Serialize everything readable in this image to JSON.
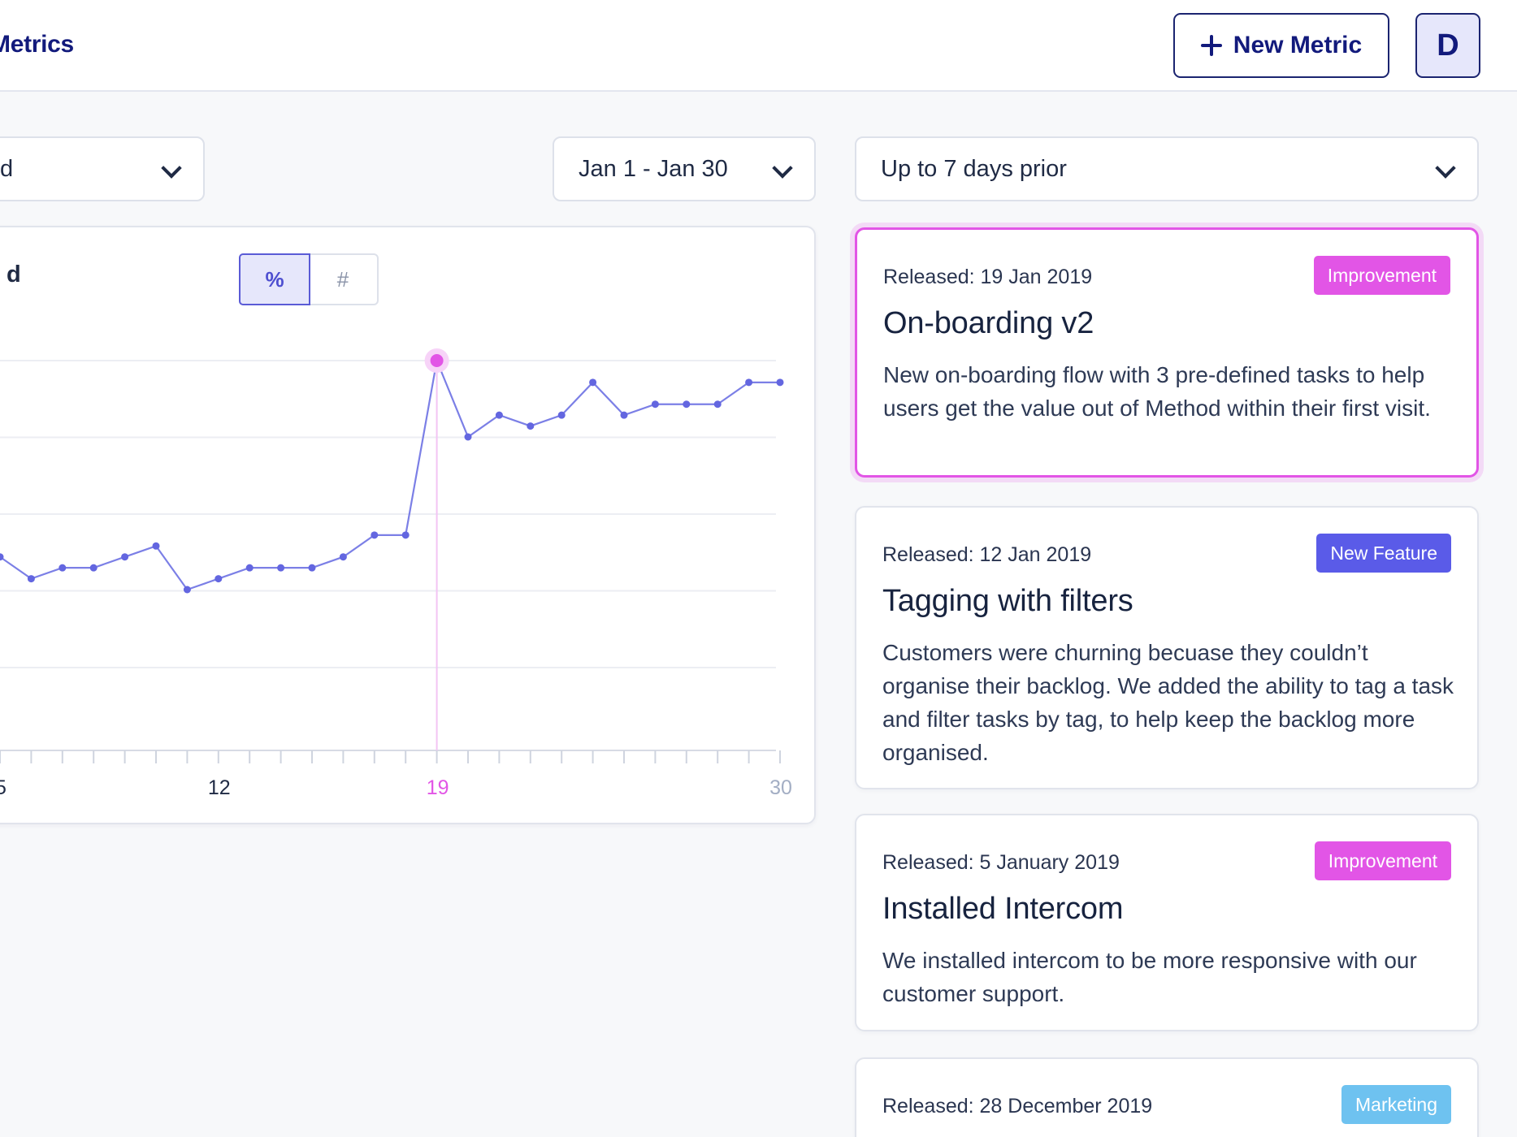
{
  "header": {
    "title": "Metrics",
    "new_metric_label": "New Metric",
    "avatar_initial": "D"
  },
  "filters": {
    "left_value": "d",
    "date_range": "Jan 1 - Jan 30",
    "prior_range": "Up to 7 days prior"
  },
  "chart": {
    "heading": "d",
    "toggle": [
      {
        "label": "%",
        "active": true
      },
      {
        "label": "#",
        "active": false
      }
    ]
  },
  "chart_data": {
    "type": "line",
    "title": "",
    "xlabel": "",
    "ylabel": "",
    "x": [
      5,
      6,
      7,
      8,
      9,
      10,
      11,
      12,
      13,
      14,
      15,
      16,
      17,
      18,
      19,
      20,
      21,
      22,
      23,
      24,
      25,
      26,
      27,
      28,
      29,
      30
    ],
    "values": [
      46,
      44,
      45,
      45,
      46,
      47,
      43,
      44,
      45,
      45,
      45,
      46,
      48,
      48,
      64,
      57,
      59,
      58,
      59,
      62,
      59,
      60,
      60,
      60,
      62,
      62
    ],
    "ylim": [
      36,
      64
    ],
    "x_tick_labels": [
      {
        "x": 5,
        "label": "5"
      },
      {
        "x": 12,
        "label": "12"
      },
      {
        "x": 19,
        "label": "19",
        "highlight": true
      },
      {
        "x": 30,
        "label": "30",
        "muted": true
      }
    ],
    "highlight_x": 19,
    "grid": true,
    "colors": {
      "line": "#7b7fe6",
      "highlight": "#e255e6",
      "grid": "#eceef3",
      "muted_tick": "#a3aec4"
    }
  },
  "releases": [
    {
      "date": "Released: 19 Jan 2019",
      "badge": "Improvement",
      "badge_color": "#e255e6",
      "title": "On-boarding v2",
      "description": "New on-boarding flow with 3 pre-defined tasks to help users get the value out of Method within their first visit.",
      "highlighted": true
    },
    {
      "date": "Released: 12 Jan 2019",
      "badge": "New Feature",
      "badge_color": "#5a5be8",
      "title": "Tagging with filters",
      "description": "Customers were churning becuase they couldn’t organise their backlog. We added the ability to tag a task and filter tasks by tag, to help keep the backlog more organised.",
      "highlighted": false
    },
    {
      "date": "Released: 5 January 2019",
      "badge": "Improvement",
      "badge_color": "#e255e6",
      "title": "Installed Intercom",
      "description": "We installed intercom to be more responsive with our customer support.",
      "highlighted": false
    },
    {
      "date": "Released: 28 December 2019",
      "badge": "Marketing",
      "badge_color": "#6ec2f0",
      "title": "",
      "description": "",
      "highlighted": false
    }
  ]
}
